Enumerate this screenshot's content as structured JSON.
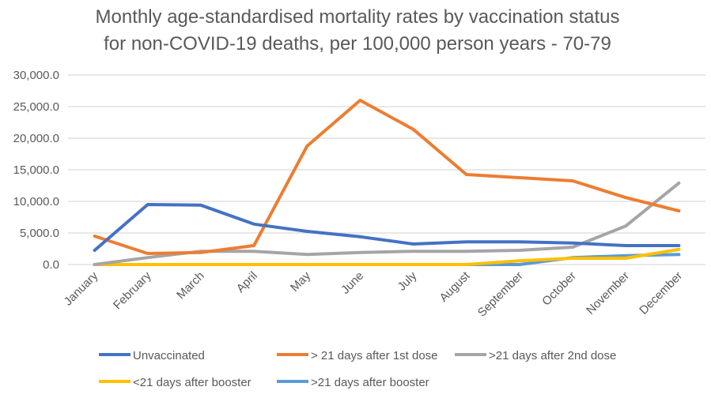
{
  "chart_data": {
    "type": "line",
    "title_lines": [
      "Monthly age-standardised mortality rates by vaccination status",
      "for non-COVID-19 deaths, per 100,000 person years - 70-79"
    ],
    "categories": [
      "January",
      "February",
      "March",
      "April",
      "May",
      "June",
      "July",
      "August",
      "September",
      "October",
      "November",
      "December"
    ],
    "ylim": [
      0,
      30000
    ],
    "yticks": [
      "0.0",
      "5,000.0",
      "10,000.0",
      "15,000.0",
      "20,000.0",
      "25,000.0",
      "30,000.0"
    ],
    "grid": true,
    "legend_position": "bottom",
    "series": [
      {
        "name": "Unvaccinated",
        "color": "#4472C4",
        "values": [
          2250,
          9500,
          9400,
          6400,
          5250,
          4400,
          3250,
          3600,
          3600,
          3400,
          3000,
          3000
        ]
      },
      {
        "name": "> 21 days after 1st dose",
        "color": "#ED7D31",
        "values": [
          4500,
          1750,
          1900,
          3000,
          18750,
          26000,
          21400,
          14250,
          13750,
          13250,
          10600,
          8500
        ]
      },
      {
        "name": ">21 days after 2nd dose",
        "color": "#A5A5A5",
        "values": [
          0,
          1100,
          2100,
          2100,
          1600,
          1900,
          2100,
          2100,
          2250,
          2750,
          6100,
          12900
        ]
      },
      {
        "name": "<21 days after booster",
        "color": "#FFC000",
        "values": [
          0,
          0,
          0,
          0,
          0,
          0,
          0,
          0,
          600,
          1000,
          1000,
          2400
        ]
      },
      {
        "name": ">21 days after booster",
        "color": "#5B9BD5",
        "values": [
          0,
          0,
          0,
          0,
          0,
          0,
          0,
          0,
          0,
          1100,
          1400,
          1600
        ]
      }
    ]
  }
}
